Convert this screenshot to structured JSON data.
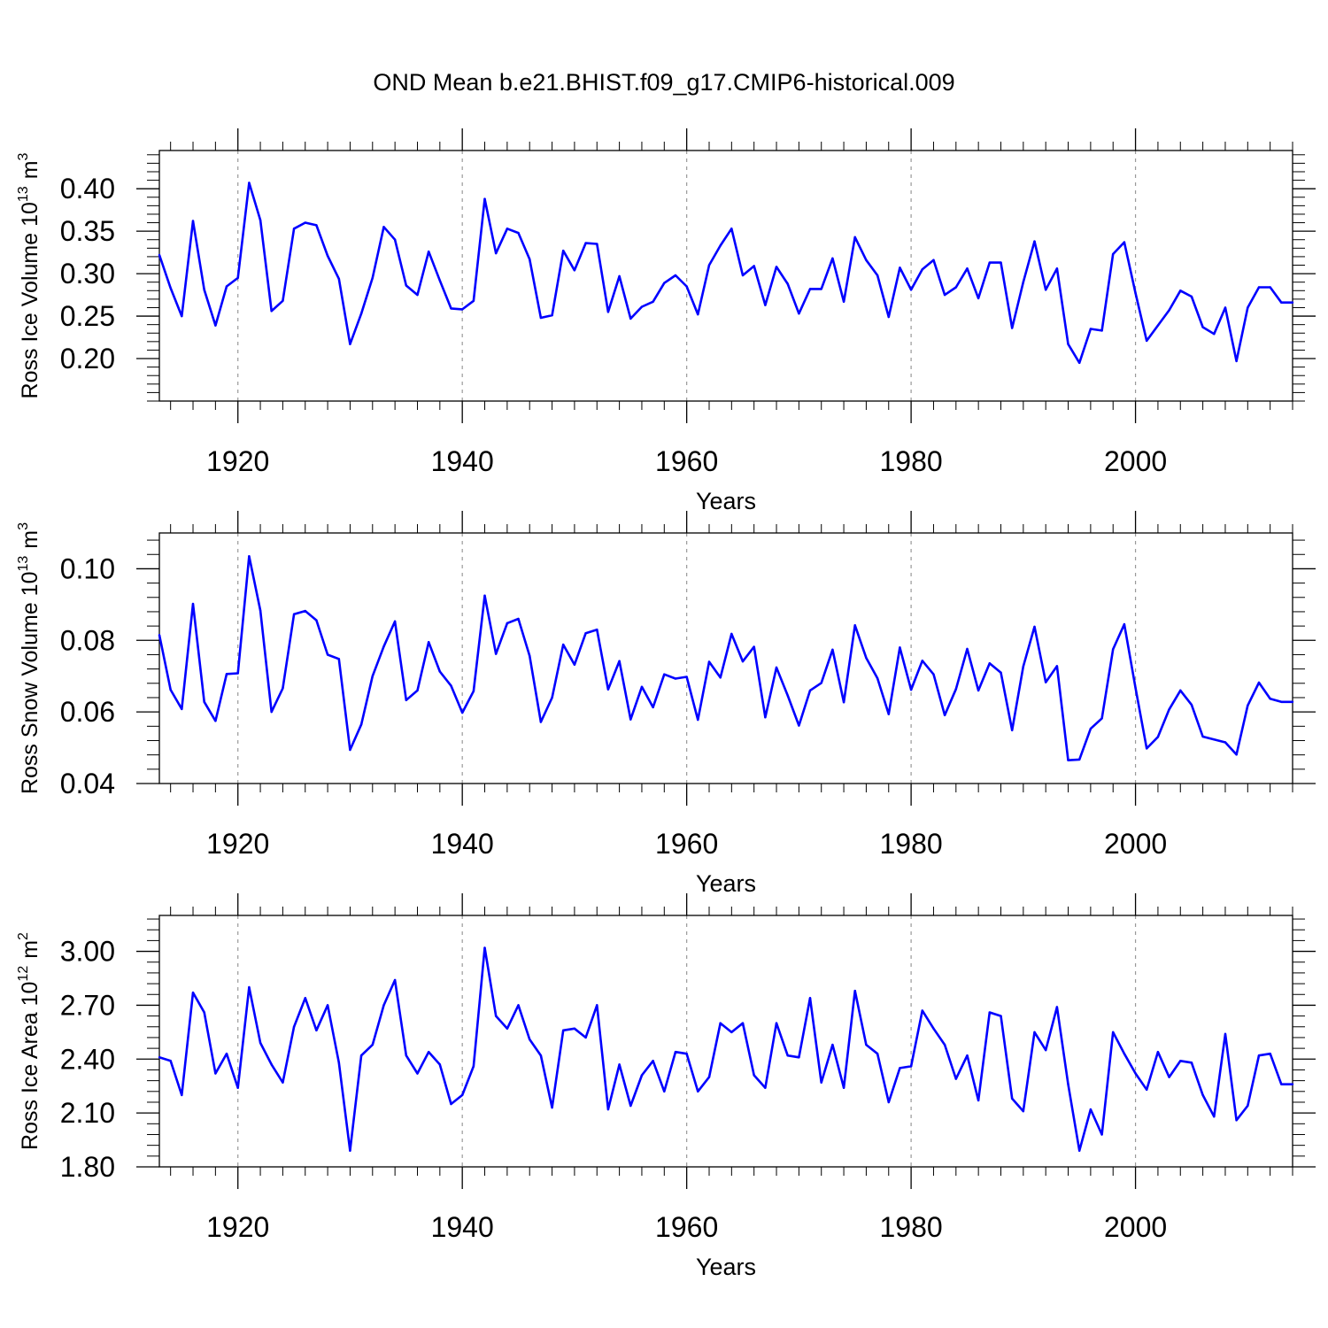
{
  "title": "OND Mean b.e21.BHIST.f09_g17.CMIP6-historical.009",
  "colors": {
    "line": "#0000ff",
    "axis": "#000000",
    "grid": "#999999"
  },
  "chart_data": [
    {
      "type": "line",
      "ylabel_main": "Ross Ice Volume 10",
      "ylabel_exp": "13",
      "ylabel_unit": "m",
      "ylabel_unit_exp": "3",
      "xlabel": "Years",
      "xlim": [
        1913,
        2014
      ],
      "ylim": [
        0.15,
        0.445
      ],
      "yticks": [
        0.2,
        0.25,
        0.3,
        0.35,
        0.4
      ],
      "ytick_labels": [
        "0.20",
        "0.25",
        "0.30",
        "0.35",
        "0.40"
      ],
      "xticks": [
        1920,
        1940,
        1960,
        1980,
        2000
      ],
      "xtick_labels": [
        "1920",
        "1940",
        "1960",
        "1980",
        "2000"
      ],
      "grid": "vertical-dashed",
      "x": [
        1913,
        1914,
        1915,
        1916,
        1917,
        1918,
        1919,
        1920,
        1921,
        1922,
        1923,
        1924,
        1925,
        1926,
        1927,
        1928,
        1929,
        1930,
        1931,
        1932,
        1933,
        1934,
        1935,
        1936,
        1937,
        1938,
        1939,
        1940,
        1941,
        1942,
        1943,
        1944,
        1945,
        1946,
        1947,
        1948,
        1949,
        1950,
        1951,
        1952,
        1953,
        1954,
        1955,
        1956,
        1957,
        1958,
        1959,
        1960,
        1961,
        1962,
        1963,
        1964,
        1965,
        1966,
        1967,
        1968,
        1969,
        1970,
        1971,
        1972,
        1973,
        1974,
        1975,
        1976,
        1977,
        1978,
        1979,
        1980,
        1981,
        1982,
        1983,
        1984,
        1985,
        1986,
        1987,
        1988,
        1989,
        1990,
        1991,
        1992,
        1993,
        1994,
        1995,
        1996,
        1997,
        1998,
        1999,
        2000,
        2001,
        2002,
        2003,
        2004,
        2005,
        2006,
        2007,
        2008,
        2009,
        2010,
        2011,
        2012,
        2013,
        2014
      ],
      "y": [
        0.322,
        0.283,
        0.25,
        0.362,
        0.281,
        0.239,
        0.285,
        0.295,
        0.407,
        0.363,
        0.256,
        0.268,
        0.353,
        0.36,
        0.357,
        0.321,
        0.294,
        0.217,
        0.253,
        0.295,
        0.355,
        0.34,
        0.286,
        0.275,
        0.326,
        0.292,
        0.259,
        0.258,
        0.268,
        0.388,
        0.324,
        0.353,
        0.348,
        0.317,
        0.248,
        0.251,
        0.327,
        0.304,
        0.336,
        0.335,
        0.255,
        0.297,
        0.247,
        0.261,
        0.267,
        0.289,
        0.298,
        0.285,
        0.252,
        0.31,
        0.333,
        0.353,
        0.298,
        0.309,
        0.263,
        0.308,
        0.288,
        0.253,
        0.282,
        0.282,
        0.318,
        0.267,
        0.343,
        0.316,
        0.298,
        0.249,
        0.307,
        0.281,
        0.305,
        0.316,
        0.275,
        0.284,
        0.306,
        0.271,
        0.313,
        0.313,
        0.236,
        0.29,
        0.338,
        0.281,
        0.306,
        0.217,
        0.195,
        0.235,
        0.233,
        0.323,
        0.337,
        0.277,
        0.221,
        0.239,
        0.257,
        0.28,
        0.273,
        0.237,
        0.229,
        0.26,
        0.197,
        0.26,
        0.284,
        0.284,
        0.266,
        0.266
      ]
    },
    {
      "type": "line",
      "ylabel_main": "Ross Snow Volume 10",
      "ylabel_exp": "13",
      "ylabel_unit": "m",
      "ylabel_unit_exp": "3",
      "xlabel": "Years",
      "xlim": [
        1913,
        2014
      ],
      "ylim": [
        0.04,
        0.11
      ],
      "yticks": [
        0.04,
        0.06,
        0.08,
        0.1
      ],
      "ytick_labels": [
        "0.04",
        "0.06",
        "0.08",
        "0.10"
      ],
      "xticks": [
        1920,
        1940,
        1960,
        1980,
        2000
      ],
      "xtick_labels": [
        "1920",
        "1940",
        "1960",
        "1980",
        "2000"
      ],
      "grid": "vertical-dashed",
      "x": [
        1913,
        1914,
        1915,
        1916,
        1917,
        1918,
        1919,
        1920,
        1921,
        1922,
        1923,
        1924,
        1925,
        1926,
        1927,
        1928,
        1929,
        1930,
        1931,
        1932,
        1933,
        1934,
        1935,
        1936,
        1937,
        1938,
        1939,
        1940,
        1941,
        1942,
        1943,
        1944,
        1945,
        1946,
        1947,
        1948,
        1949,
        1950,
        1951,
        1952,
        1953,
        1954,
        1955,
        1956,
        1957,
        1958,
        1959,
        1960,
        1961,
        1962,
        1963,
        1964,
        1965,
        1966,
        1967,
        1968,
        1969,
        1970,
        1971,
        1972,
        1973,
        1974,
        1975,
        1976,
        1977,
        1978,
        1979,
        1980,
        1981,
        1982,
        1983,
        1984,
        1985,
        1986,
        1987,
        1988,
        1989,
        1990,
        1991,
        1992,
        1993,
        1994,
        1995,
        1996,
        1997,
        1998,
        1999,
        2000,
        2001,
        2002,
        2003,
        2004,
        2005,
        2006,
        2007,
        2008,
        2009,
        2010,
        2011,
        2012,
        2013,
        2014
      ],
      "y": [
        0.0815,
        0.0662,
        0.0608,
        0.0902,
        0.0628,
        0.0575,
        0.0706,
        0.0708,
        0.1035,
        0.0883,
        0.06,
        0.0666,
        0.0873,
        0.0882,
        0.0856,
        0.076,
        0.0748,
        0.0494,
        0.0565,
        0.07,
        0.0783,
        0.0853,
        0.0633,
        0.066,
        0.0795,
        0.0713,
        0.0673,
        0.0598,
        0.0658,
        0.0925,
        0.0762,
        0.0848,
        0.086,
        0.0757,
        0.0572,
        0.064,
        0.0788,
        0.0732,
        0.082,
        0.083,
        0.0663,
        0.0742,
        0.0579,
        0.067,
        0.0613,
        0.0705,
        0.0693,
        0.0698,
        0.0578,
        0.074,
        0.0696,
        0.0818,
        0.0741,
        0.0782,
        0.0585,
        0.0724,
        0.0646,
        0.0562,
        0.066,
        0.0681,
        0.0774,
        0.0627,
        0.0842,
        0.0751,
        0.0694,
        0.0594,
        0.078,
        0.0662,
        0.0743,
        0.0705,
        0.0591,
        0.0664,
        0.0776,
        0.066,
        0.0736,
        0.071,
        0.0549,
        0.0727,
        0.0838,
        0.0683,
        0.0728,
        0.0465,
        0.0467,
        0.0553,
        0.0582,
        0.0775,
        0.0845,
        0.0667,
        0.0498,
        0.053,
        0.0607,
        0.066,
        0.062,
        0.0531,
        0.0523,
        0.0515,
        0.0481,
        0.0618,
        0.0682,
        0.0637,
        0.0628,
        0.0628
      ]
    },
    {
      "type": "line",
      "ylabel_main": "Ross Ice Area 10",
      "ylabel_exp": "12",
      "ylabel_unit": "m",
      "ylabel_unit_exp": "2",
      "xlabel": "Years",
      "xlim": [
        1913,
        2014
      ],
      "ylim": [
        1.8,
        3.2
      ],
      "yticks": [
        1.8,
        2.1,
        2.4,
        2.7,
        3.0
      ],
      "ytick_labels": [
        "1.80",
        "2.10",
        "2.40",
        "2.70",
        "3.00"
      ],
      "xticks": [
        1920,
        1940,
        1960,
        1980,
        2000
      ],
      "xtick_labels": [
        "1920",
        "1940",
        "1960",
        "1980",
        "2000"
      ],
      "grid": "vertical-dashed",
      "x": [
        1913,
        1914,
        1915,
        1916,
        1917,
        1918,
        1919,
        1920,
        1921,
        1922,
        1923,
        1924,
        1925,
        1926,
        1927,
        1928,
        1929,
        1930,
        1931,
        1932,
        1933,
        1934,
        1935,
        1936,
        1937,
        1938,
        1939,
        1940,
        1941,
        1942,
        1943,
        1944,
        1945,
        1946,
        1947,
        1948,
        1949,
        1950,
        1951,
        1952,
        1953,
        1954,
        1955,
        1956,
        1957,
        1958,
        1959,
        1960,
        1961,
        1962,
        1963,
        1964,
        1965,
        1966,
        1967,
        1968,
        1969,
        1970,
        1971,
        1972,
        1973,
        1974,
        1975,
        1976,
        1977,
        1978,
        1979,
        1980,
        1981,
        1982,
        1983,
        1984,
        1985,
        1986,
        1987,
        1988,
        1989,
        1990,
        1991,
        1992,
        1993,
        1994,
        1995,
        1996,
        1997,
        1998,
        1999,
        2000,
        2001,
        2002,
        2003,
        2004,
        2005,
        2006,
        2007,
        2008,
        2009,
        2010,
        2011,
        2012,
        2013,
        2014
      ],
      "y": [
        2.41,
        2.39,
        2.2,
        2.77,
        2.66,
        2.32,
        2.43,
        2.24,
        2.8,
        2.49,
        2.37,
        2.27,
        2.58,
        2.74,
        2.56,
        2.7,
        2.38,
        1.89,
        2.42,
        2.48,
        2.7,
        2.84,
        2.42,
        2.32,
        2.44,
        2.37,
        2.15,
        2.2,
        2.36,
        3.02,
        2.64,
        2.57,
        2.7,
        2.51,
        2.42,
        2.13,
        2.56,
        2.57,
        2.52,
        2.7,
        2.12,
        2.37,
        2.14,
        2.31,
        2.39,
        2.22,
        2.44,
        2.43,
        2.22,
        2.3,
        2.6,
        2.55,
        2.6,
        2.31,
        2.24,
        2.6,
        2.42,
        2.41,
        2.74,
        2.27,
        2.48,
        2.24,
        2.78,
        2.48,
        2.43,
        2.16,
        2.35,
        2.36,
        2.67,
        2.57,
        2.48,
        2.29,
        2.42,
        2.17,
        2.66,
        2.64,
        2.18,
        2.11,
        2.55,
        2.45,
        2.69,
        2.26,
        1.89,
        2.12,
        1.98,
        2.55,
        2.43,
        2.32,
        2.23,
        2.44,
        2.3,
        2.39,
        2.38,
        2.2,
        2.08,
        2.54,
        2.06,
        2.14,
        2.42,
        2.43,
        2.26,
        2.26
      ]
    }
  ]
}
